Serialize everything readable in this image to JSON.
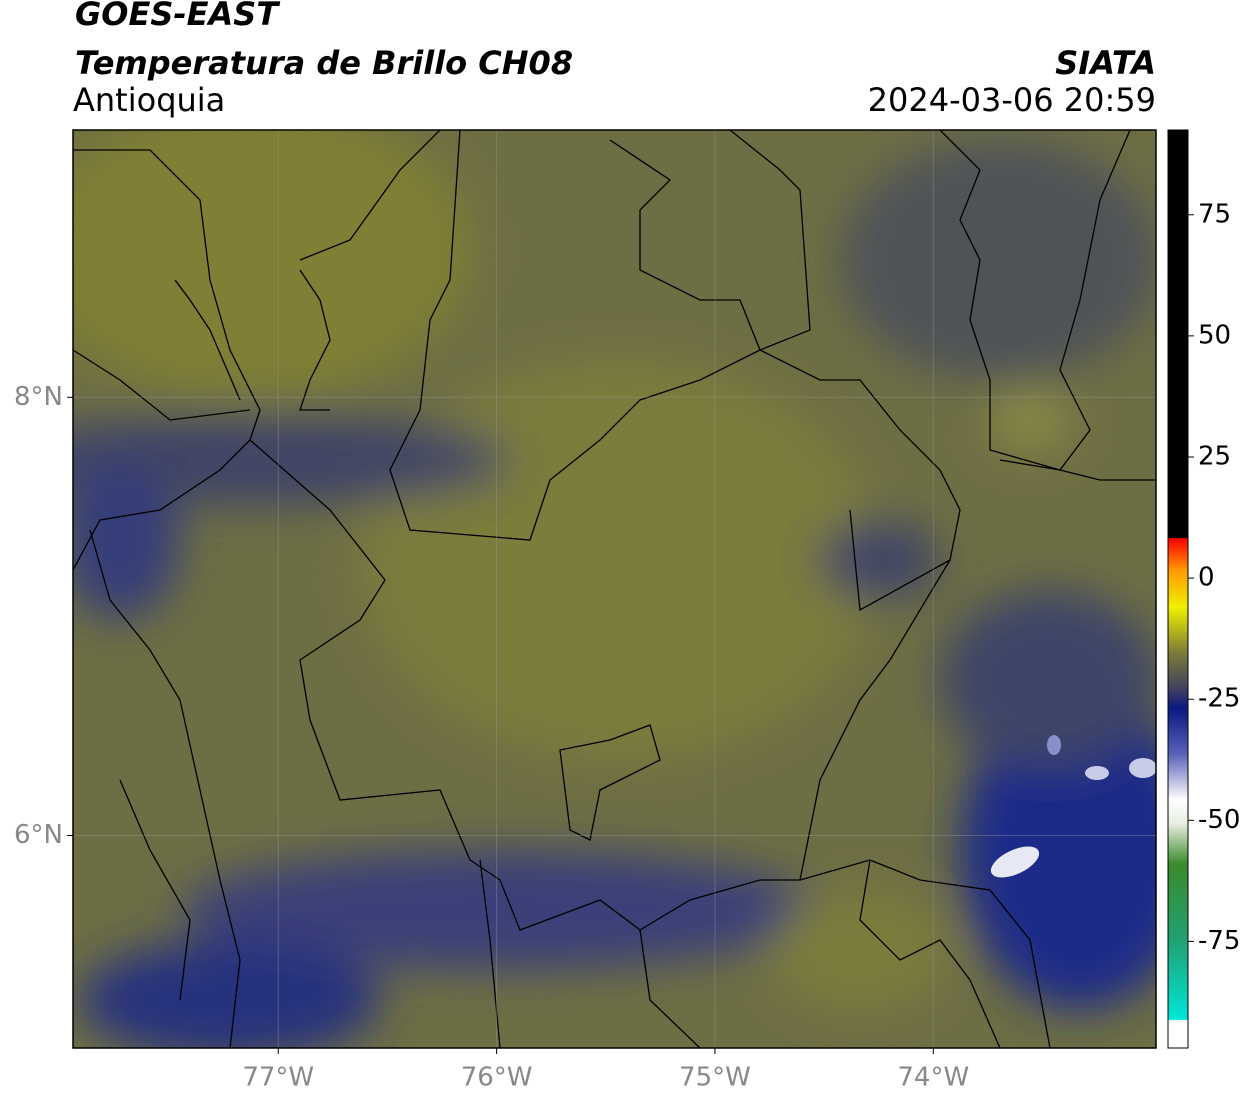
{
  "header": {
    "title": "GOES-EAST",
    "subtitle": "Temperatura de Brillo CH08",
    "region": "Antioquia",
    "source": "SIATA",
    "timestamp": "2024-03-06 20:59"
  },
  "map": {
    "lonlim": [
      -77.94,
      -72.98
    ],
    "latlim": [
      5.03,
      9.22
    ],
    "lon_ticks": [
      {
        "value": -77,
        "label": "77°W"
      },
      {
        "value": -76,
        "label": "76°W"
      },
      {
        "value": -75,
        "label": "75°W"
      },
      {
        "value": -74,
        "label": "74°W"
      }
    ],
    "lat_ticks": [
      {
        "value": 8,
        "label": "8°N"
      },
      {
        "value": 6,
        "label": "6°N"
      }
    ],
    "grid": true
  },
  "colorbar": {
    "lim": [
      -97,
      92.5
    ],
    "ticks": [
      75,
      50,
      25,
      0,
      -25,
      -50,
      -75
    ]
  }
}
